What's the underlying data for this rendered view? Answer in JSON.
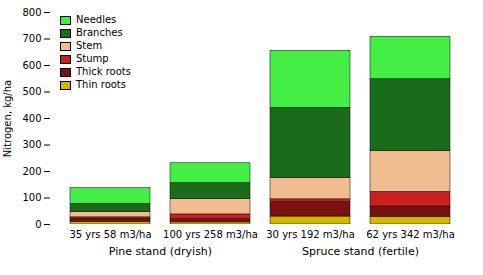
{
  "chart_data": {
    "type": "bar",
    "stacked": true,
    "categories": [
      "35 yrs 58 m3/ha",
      "100 yrs 258 m3/ha",
      "30 yrs 192 m3/ha",
      "62 yrs 342 m3/ha"
    ],
    "groups": [
      {
        "name": "Pine stand (dryish)",
        "categories": [
          "35 yrs 58 m3/ha",
          "100 yrs 258 m3/ha"
        ]
      },
      {
        "name": "Spruce stand (fertile)",
        "categories": [
          "30 yrs 192 m3/ha",
          "62 yrs 342 m3/ha"
        ]
      }
    ],
    "series": [
      {
        "name": "Thin roots",
        "color": "#d4b800",
        "values": [
          10,
          8,
          30,
          28
        ]
      },
      {
        "name": "Thick roots",
        "color": "#7a1010",
        "values": [
          12,
          12,
          55,
          40
        ]
      },
      {
        "name": "Stump",
        "color": "#cc2020",
        "values": [
          5,
          18,
          10,
          55
        ]
      },
      {
        "name": "Stem",
        "color": "#f0bc90",
        "values": [
          20,
          58,
          80,
          155
        ]
      },
      {
        "name": "Branches",
        "color": "#1a6b1a",
        "values": [
          30,
          60,
          265,
          270
        ]
      },
      {
        "name": "Needles",
        "color": "#44ee44",
        "values": [
          60,
          75,
          215,
          160
        ]
      }
    ],
    "ylabel": "Nitrogen, kg/ha",
    "ylim": [
      0,
      800
    ],
    "yticks": [
      0,
      100,
      200,
      300,
      400,
      500,
      600,
      700,
      800
    ],
    "legend": "upper left",
    "grid": false
  }
}
